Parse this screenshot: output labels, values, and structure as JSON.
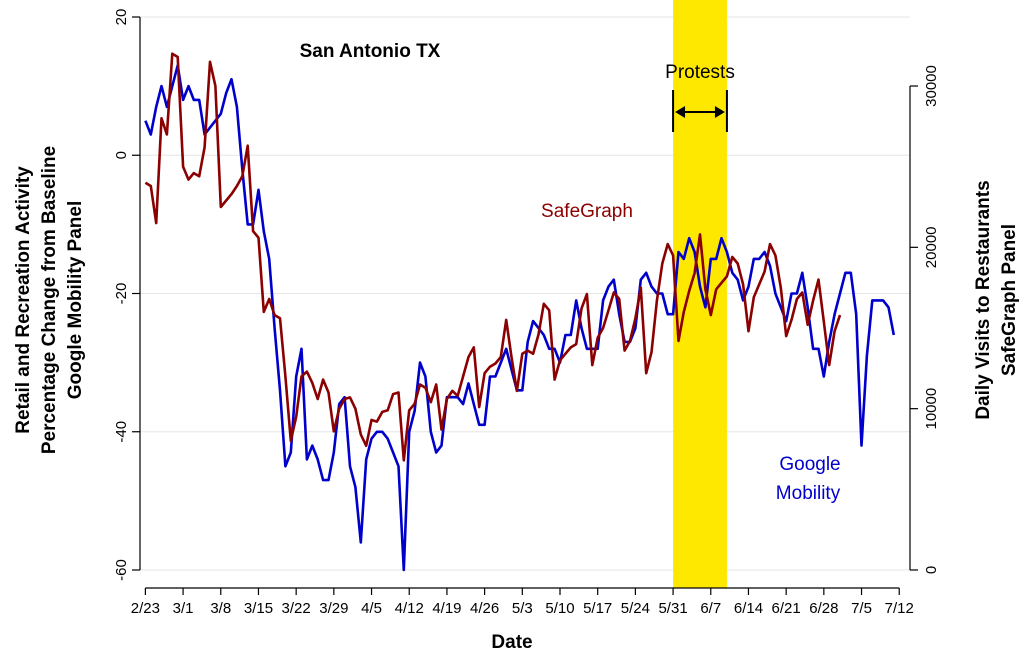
{
  "chart_data": {
    "type": "line",
    "title": "San Antonio TX",
    "xlabel": "Date",
    "ylabel_left": [
      "Retail and Recreation Activity",
      "Percentage Change from Baseline",
      "Google Mobility Panel"
    ],
    "ylabel_right": [
      "Daily Visits to Restaurants",
      "SafeGraph Panel"
    ],
    "x_tick_labels": [
      "2/23",
      "3/1",
      "3/8",
      "3/15",
      "3/22",
      "3/29",
      "4/5",
      "4/12",
      "4/19",
      "4/26",
      "5/3",
      "5/10",
      "5/17",
      "5/24",
      "5/31",
      "6/7",
      "6/14",
      "6/21",
      "6/28",
      "7/5",
      "7/12"
    ],
    "x_range_days": [
      -1,
      142
    ],
    "y_left_ticks": [
      20,
      0,
      -20,
      -40,
      -60
    ],
    "y_left_range": [
      -60,
      20
    ],
    "y_right_ticks": [
      0,
      10000,
      20000,
      30000
    ],
    "y_right_range": [
      0,
      33000
    ],
    "grid": true,
    "legend": "inline labels",
    "annotations": [
      {
        "text": "Protests",
        "start_day": 98,
        "end_day": 108,
        "color": "#ffe800"
      }
    ],
    "series": [
      {
        "name": "Google Mobility",
        "axis": "left",
        "color": "#0000cc",
        "label_lines": [
          "Google",
          "Mobility"
        ],
        "values": [
          5,
          3,
          7,
          10,
          7,
          10,
          13,
          8,
          10,
          8,
          8,
          3,
          4,
          5,
          6,
          9,
          11,
          7,
          -2,
          -10,
          -10,
          -5,
          -11,
          -15,
          -25,
          -34,
          -45,
          -43,
          -32,
          -28,
          -44,
          -42,
          -44,
          -47,
          -47,
          -43,
          -36,
          -35,
          -45,
          -48,
          -56,
          -44,
          -41,
          -40,
          -40,
          -41,
          -43,
          -45,
          -60,
          -40,
          -37,
          -30,
          -32,
          -40,
          -43,
          -42,
          -35,
          -35,
          -35,
          -36,
          -33,
          -36,
          -39,
          -39,
          -32,
          -32,
          -30,
          -28,
          -31,
          -34,
          -34,
          -27,
          -24,
          -25,
          -26,
          -28,
          -28,
          -30,
          -26,
          -26,
          -21,
          -25,
          -28,
          -28,
          -28,
          -21,
          -19,
          -18,
          -23,
          -27,
          -27,
          -25,
          -18,
          -17,
          -19,
          -20,
          -20,
          -23,
          -23,
          -14,
          -15,
          -12,
          -14,
          -19,
          -22,
          -15,
          -15,
          -12,
          -14,
          -17,
          -18,
          -21,
          -19,
          -15,
          -15,
          -14,
          -16,
          -20,
          -22,
          -24,
          -20,
          -20,
          -17,
          -22,
          -28,
          -28,
          -32,
          -27,
          -23,
          -20,
          -17,
          -17,
          -23,
          -42,
          -29,
          -21,
          -21,
          -21,
          -22,
          -26
        ]
      },
      {
        "name": "SafeGraph",
        "axis": "right",
        "color": "#8b0000",
        "label_lines": [
          "SafeGraph"
        ],
        "values": [
          24000,
          23800,
          21500,
          28000,
          27000,
          32000,
          31800,
          25000,
          24200,
          24600,
          24400,
          26200,
          31500,
          30000,
          22500,
          22900,
          23300,
          23800,
          24400,
          26300,
          21000,
          20600,
          16000,
          16800,
          15800,
          15600,
          12000,
          8000,
          9500,
          12000,
          12300,
          11600,
          10600,
          11800,
          11000,
          8600,
          10000,
          10600,
          10700,
          10000,
          8400,
          7700,
          9300,
          9200,
          9800,
          9900,
          10900,
          11000,
          6800,
          9900,
          10300,
          11500,
          11300,
          10400,
          11500,
          8700,
          10600,
          11100,
          10800,
          12000,
          13200,
          13800,
          10100,
          12200,
          12600,
          12800,
          13200,
          15500,
          13200,
          11100,
          13400,
          13600,
          13400,
          14600,
          16500,
          16100,
          11800,
          13000,
          13400,
          13800,
          14000,
          16200,
          17100,
          12700,
          14400,
          15000,
          16100,
          17200,
          16800,
          13600,
          14200,
          15600,
          17500,
          12200,
          13500,
          16700,
          19000,
          20200,
          19500,
          14200,
          16000,
          17300,
          18400,
          20800,
          17400,
          15800,
          17400,
          17800,
          18200,
          19400,
          19000,
          17700,
          14800,
          16900,
          17700,
          18500,
          20200,
          19500,
          17500,
          14500,
          15500,
          16800,
          17200,
          15200,
          16700,
          18000,
          15400,
          12700,
          14800,
          15800
        ]
      }
    ]
  }
}
